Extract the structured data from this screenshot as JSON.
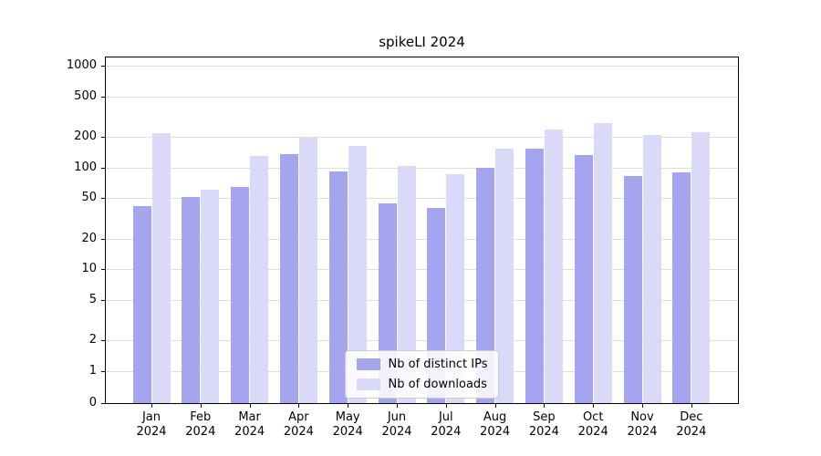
{
  "chart_data": {
    "type": "bar",
    "title": "spikeLI 2024",
    "months": [
      "Jan",
      "Feb",
      "Mar",
      "Apr",
      "May",
      "Jun",
      "Jul",
      "Aug",
      "Sep",
      "Oct",
      "Nov",
      "Dec"
    ],
    "year": "2024",
    "series": [
      {
        "name": "Nb of distinct IPs",
        "color": "#a5a5ef",
        "values": [
          42,
          51,
          64,
          135,
          92,
          44,
          40,
          100,
          152,
          132,
          83,
          90
        ]
      },
      {
        "name": "Nb of downloads",
        "color": "#dadaf8",
        "values": [
          215,
          60,
          130,
          197,
          163,
          104,
          86,
          152,
          238,
          275,
          210,
          222
        ]
      }
    ],
    "yticks": [
      0,
      1,
      2,
      5,
      10,
      20,
      50,
      100,
      200,
      500,
      1000
    ],
    "yscale": "symlog",
    "ylim": [
      0,
      1254
    ],
    "grid": "horizontal-gridlines",
    "legend_position": "lower center"
  }
}
